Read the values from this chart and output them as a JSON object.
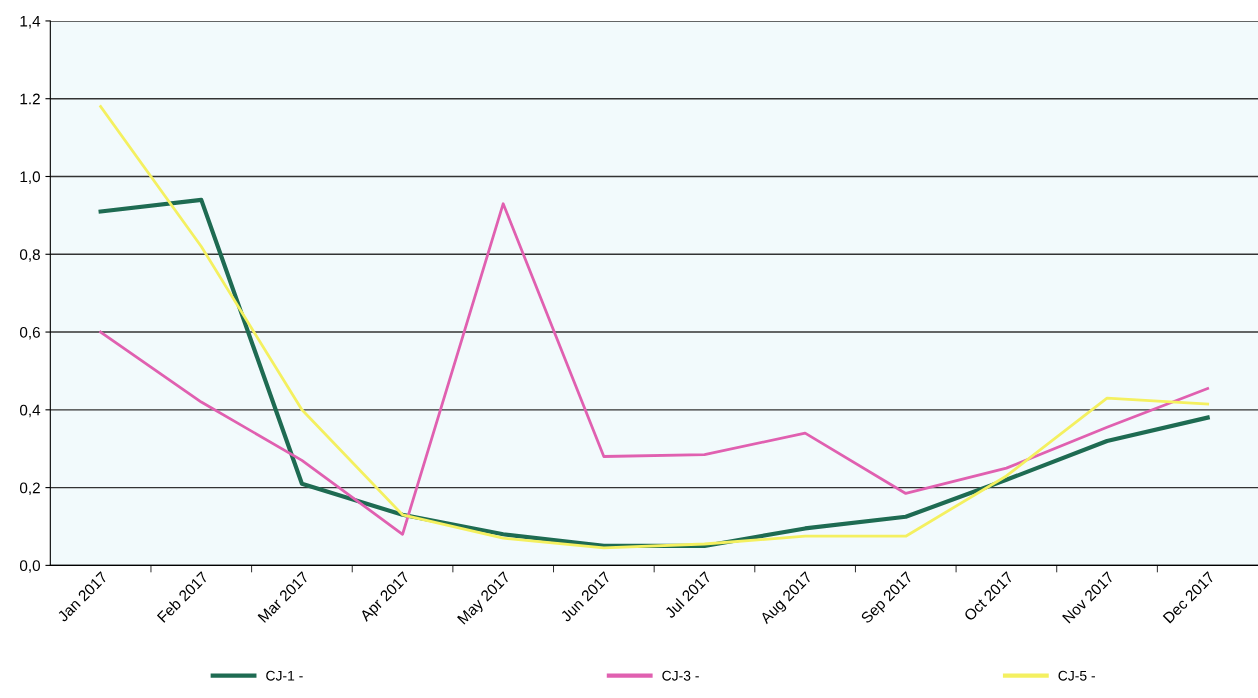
{
  "chart_data": {
    "type": "line",
    "categories": [
      "Jan 2017",
      "Feb 2017",
      "Mar 2017",
      "Apr 2017",
      "May 2017",
      "Jun 2017",
      "Jul 2017",
      "Aug 2017",
      "Sep 2017",
      "Oct 2017",
      "Nov 2017",
      "Dec 2017"
    ],
    "series": [
      {
        "name": "CJ-1 -",
        "color": "#1e6b52",
        "values": [
          0.91,
          0.94,
          0.21,
          0.13,
          0.08,
          0.05,
          0.05,
          0.095,
          0.125,
          0.22,
          0.32,
          0.38
        ]
      },
      {
        "name": "CJ-3 -",
        "color": "#e060b0",
        "values": [
          0.6,
          0.42,
          0.27,
          0.08,
          0.93,
          0.28,
          0.285,
          0.34,
          0.185,
          0.25,
          0.355,
          0.455
        ]
      },
      {
        "name": "CJ-5 -",
        "color": "#f4f060",
        "values": [
          1.18,
          0.82,
          0.4,
          0.13,
          0.07,
          0.045,
          0.055,
          0.075,
          0.075,
          0.23,
          0.43,
          0.415
        ]
      }
    ],
    "ylim": [
      0,
      1.4
    ],
    "yticks": [
      {
        "value": 0,
        "label": "0,0"
      },
      {
        "value": 0.2,
        "label": "0,2"
      },
      {
        "value": 0.4,
        "label": "0,4"
      },
      {
        "value": 0.6,
        "label": "0,6"
      },
      {
        "value": 0.8,
        "label": "0,8"
      },
      {
        "value": 1.0,
        "label": "1,0"
      },
      {
        "value": 1.2,
        "label": "1.2"
      },
      {
        "value": 1.4,
        "label": "1,4"
      }
    ],
    "grid": "y",
    "legend": "bottom",
    "marker": "none",
    "line_style": "solid"
  }
}
